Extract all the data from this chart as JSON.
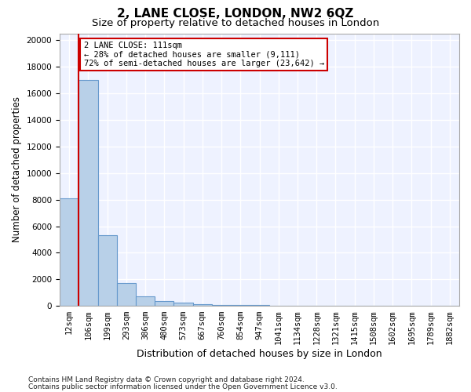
{
  "title_line1": "2, LANE CLOSE, LONDON, NW2 6QZ",
  "title_line2": "Size of property relative to detached houses in London",
  "xlabel": "Distribution of detached houses by size in London",
  "ylabel": "Number of detached properties",
  "bin_labels": [
    "12sqm",
    "106sqm",
    "199sqm",
    "293sqm",
    "386sqm",
    "480sqm",
    "573sqm",
    "667sqm",
    "760sqm",
    "854sqm",
    "947sqm",
    "1041sqm",
    "1134sqm",
    "1228sqm",
    "1321sqm",
    "1415sqm",
    "1508sqm",
    "1602sqm",
    "1695sqm",
    "1789sqm",
    "1882sqm"
  ],
  "bar_heights": [
    8100,
    17000,
    5300,
    1750,
    700,
    380,
    230,
    130,
    90,
    65,
    50,
    40,
    30,
    25,
    20,
    15,
    12,
    10,
    8,
    6,
    5
  ],
  "bar_color": "#b8d0e8",
  "bar_edge_color": "#6699cc",
  "annotation_text": "2 LANE CLOSE: 111sqm\n← 28% of detached houses are smaller (9,111)\n72% of semi-detached houses are larger (23,642) →",
  "annotation_box_color": "#ffffff",
  "annotation_border_color": "#cc0000",
  "red_line_index": 1,
  "ylim": [
    0,
    20500
  ],
  "yticks": [
    0,
    2000,
    4000,
    6000,
    8000,
    10000,
    12000,
    14000,
    16000,
    18000,
    20000
  ],
  "footer_line1": "Contains HM Land Registry data © Crown copyright and database right 2024.",
  "footer_line2": "Contains public sector information licensed under the Open Government Licence v3.0.",
  "bg_color": "#eef2ff",
  "grid_color": "#ffffff",
  "title1_fontsize": 11,
  "title2_fontsize": 9.5,
  "xlabel_fontsize": 9,
  "ylabel_fontsize": 8.5,
  "tick_fontsize": 7.5,
  "annot_fontsize": 7.5,
  "footer_fontsize": 6.5
}
